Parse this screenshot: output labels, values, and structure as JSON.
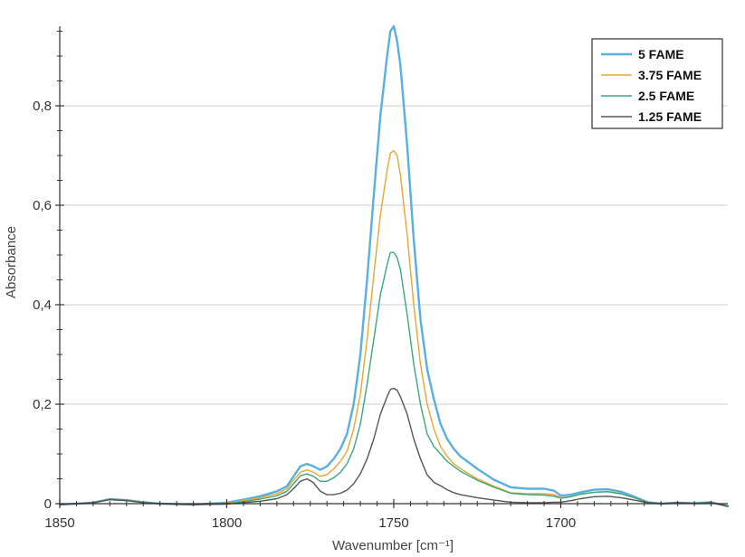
{
  "chart_data": {
    "type": "line",
    "xlabel": "Wavenumber [cm⁻¹]",
    "ylabel": "Absorbance",
    "xlim": [
      1850,
      1650
    ],
    "ylim": [
      0,
      0.96
    ],
    "x_reversed": true,
    "x_ticks": [
      1850,
      1800,
      1750,
      1700
    ],
    "x_tick_labels": [
      "1850",
      "1800",
      "1750",
      "1700"
    ],
    "y_ticks": [
      0,
      0.2,
      0.4,
      0.6,
      0.8
    ],
    "y_tick_labels": [
      "0",
      "0,2",
      "0,4",
      "0,6",
      "0,8"
    ],
    "grid": "horizontal",
    "legend_position": "top-right",
    "series": [
      {
        "name": "5 FAME",
        "color": "#5aafe0",
        "points": [
          [
            1850,
            -0.002
          ],
          [
            1840,
            0.002
          ],
          [
            1835,
            0.009
          ],
          [
            1830,
            0.007
          ],
          [
            1825,
            0.003
          ],
          [
            1820,
            0.0
          ],
          [
            1810,
            -0.002
          ],
          [
            1800,
            0.002
          ],
          [
            1795,
            0.008
          ],
          [
            1790,
            0.015
          ],
          [
            1785,
            0.025
          ],
          [
            1782,
            0.035
          ],
          [
            1780,
            0.055
          ],
          [
            1778,
            0.075
          ],
          [
            1776,
            0.08
          ],
          [
            1774,
            0.075
          ],
          [
            1772,
            0.068
          ],
          [
            1770,
            0.075
          ],
          [
            1768,
            0.09
          ],
          [
            1766,
            0.11
          ],
          [
            1764,
            0.14
          ],
          [
            1762,
            0.2
          ],
          [
            1760,
            0.3
          ],
          [
            1758,
            0.45
          ],
          [
            1756,
            0.62
          ],
          [
            1754,
            0.78
          ],
          [
            1752,
            0.9
          ],
          [
            1751,
            0.95
          ],
          [
            1750,
            0.96
          ],
          [
            1749,
            0.93
          ],
          [
            1748,
            0.88
          ],
          [
            1746,
            0.72
          ],
          [
            1744,
            0.53
          ],
          [
            1742,
            0.37
          ],
          [
            1740,
            0.27
          ],
          [
            1738,
            0.21
          ],
          [
            1736,
            0.16
          ],
          [
            1734,
            0.13
          ],
          [
            1732,
            0.11
          ],
          [
            1730,
            0.095
          ],
          [
            1725,
            0.07
          ],
          [
            1720,
            0.048
          ],
          [
            1715,
            0.033
          ],
          [
            1710,
            0.03
          ],
          [
            1705,
            0.03
          ],
          [
            1702,
            0.026
          ],
          [
            1700,
            0.016
          ],
          [
            1697,
            0.018
          ],
          [
            1694,
            0.023
          ],
          [
            1690,
            0.028
          ],
          [
            1686,
            0.029
          ],
          [
            1682,
            0.024
          ],
          [
            1678,
            0.014
          ],
          [
            1674,
            0.003
          ],
          [
            1670,
            0.0
          ],
          [
            1665,
            0.002
          ],
          [
            1660,
            0.001
          ],
          [
            1655,
            0.003
          ],
          [
            1650,
            -0.005
          ]
        ]
      },
      {
        "name": "3.75 FAME",
        "color": "#e8a632",
        "points": [
          [
            1850,
            -0.002
          ],
          [
            1840,
            0.002
          ],
          [
            1835,
            0.009
          ],
          [
            1830,
            0.007
          ],
          [
            1825,
            0.003
          ],
          [
            1820,
            0.0
          ],
          [
            1810,
            -0.002
          ],
          [
            1800,
            0.001
          ],
          [
            1795,
            0.006
          ],
          [
            1790,
            0.012
          ],
          [
            1785,
            0.02
          ],
          [
            1782,
            0.03
          ],
          [
            1780,
            0.047
          ],
          [
            1778,
            0.063
          ],
          [
            1776,
            0.068
          ],
          [
            1774,
            0.063
          ],
          [
            1772,
            0.055
          ],
          [
            1770,
            0.058
          ],
          [
            1768,
            0.07
          ],
          [
            1766,
            0.085
          ],
          [
            1764,
            0.105
          ],
          [
            1762,
            0.15
          ],
          [
            1760,
            0.22
          ],
          [
            1758,
            0.33
          ],
          [
            1756,
            0.46
          ],
          [
            1754,
            0.58
          ],
          [
            1752,
            0.67
          ],
          [
            1751,
            0.705
          ],
          [
            1750,
            0.71
          ],
          [
            1749,
            0.7
          ],
          [
            1748,
            0.66
          ],
          [
            1746,
            0.54
          ],
          [
            1744,
            0.4
          ],
          [
            1742,
            0.28
          ],
          [
            1740,
            0.2
          ],
          [
            1738,
            0.15
          ],
          [
            1736,
            0.115
          ],
          [
            1734,
            0.095
          ],
          [
            1732,
            0.08
          ],
          [
            1730,
            0.07
          ],
          [
            1725,
            0.05
          ],
          [
            1720,
            0.035
          ],
          [
            1715,
            0.022
          ],
          [
            1710,
            0.02
          ],
          [
            1705,
            0.02
          ],
          [
            1702,
            0.018
          ],
          [
            1700,
            0.012
          ],
          [
            1697,
            0.014
          ],
          [
            1694,
            0.019
          ],
          [
            1690,
            0.023
          ],
          [
            1686,
            0.025
          ],
          [
            1682,
            0.02
          ],
          [
            1678,
            0.012
          ],
          [
            1674,
            0.003
          ],
          [
            1670,
            0.0
          ],
          [
            1665,
            0.002
          ],
          [
            1660,
            0.001
          ],
          [
            1655,
            0.003
          ],
          [
            1650,
            -0.005
          ]
        ]
      },
      {
        "name": "2.5 FAME",
        "color": "#3aa87a",
        "points": [
          [
            1850,
            -0.002
          ],
          [
            1840,
            0.002
          ],
          [
            1835,
            0.009
          ],
          [
            1830,
            0.007
          ],
          [
            1825,
            0.003
          ],
          [
            1820,
            0.0
          ],
          [
            1810,
            -0.002
          ],
          [
            1800,
            0.0
          ],
          [
            1795,
            0.004
          ],
          [
            1790,
            0.009
          ],
          [
            1785,
            0.016
          ],
          [
            1782,
            0.025
          ],
          [
            1780,
            0.04
          ],
          [
            1778,
            0.056
          ],
          [
            1776,
            0.06
          ],
          [
            1774,
            0.055
          ],
          [
            1772,
            0.045
          ],
          [
            1770,
            0.045
          ],
          [
            1768,
            0.052
          ],
          [
            1766,
            0.063
          ],
          [
            1764,
            0.08
          ],
          [
            1762,
            0.11
          ],
          [
            1760,
            0.16
          ],
          [
            1758,
            0.24
          ],
          [
            1756,
            0.33
          ],
          [
            1754,
            0.42
          ],
          [
            1752,
            0.48
          ],
          [
            1751,
            0.505
          ],
          [
            1750,
            0.505
          ],
          [
            1749,
            0.495
          ],
          [
            1748,
            0.47
          ],
          [
            1746,
            0.38
          ],
          [
            1744,
            0.28
          ],
          [
            1742,
            0.2
          ],
          [
            1740,
            0.14
          ],
          [
            1738,
            0.115
          ],
          [
            1736,
            0.1
          ],
          [
            1734,
            0.085
          ],
          [
            1732,
            0.075
          ],
          [
            1730,
            0.065
          ],
          [
            1725,
            0.047
          ],
          [
            1720,
            0.033
          ],
          [
            1715,
            0.021
          ],
          [
            1710,
            0.018
          ],
          [
            1705,
            0.017
          ],
          [
            1702,
            0.015
          ],
          [
            1700,
            0.011
          ],
          [
            1697,
            0.014
          ],
          [
            1694,
            0.019
          ],
          [
            1690,
            0.023
          ],
          [
            1686,
            0.024
          ],
          [
            1682,
            0.02
          ],
          [
            1678,
            0.012
          ],
          [
            1674,
            0.003
          ],
          [
            1670,
            0.0
          ],
          [
            1665,
            0.002
          ],
          [
            1660,
            0.001
          ],
          [
            1655,
            0.003
          ],
          [
            1650,
            -0.005
          ]
        ]
      },
      {
        "name": "1.25 FAME",
        "color": "#555555",
        "points": [
          [
            1850,
            -0.002
          ],
          [
            1840,
            0.002
          ],
          [
            1835,
            0.008
          ],
          [
            1830,
            0.006
          ],
          [
            1825,
            0.002
          ],
          [
            1820,
            0.0
          ],
          [
            1810,
            -0.002
          ],
          [
            1800,
            -0.001
          ],
          [
            1795,
            0.002
          ],
          [
            1790,
            0.005
          ],
          [
            1785,
            0.01
          ],
          [
            1782,
            0.018
          ],
          [
            1780,
            0.03
          ],
          [
            1778,
            0.045
          ],
          [
            1776,
            0.05
          ],
          [
            1774,
            0.042
          ],
          [
            1772,
            0.025
          ],
          [
            1770,
            0.018
          ],
          [
            1768,
            0.018
          ],
          [
            1766,
            0.021
          ],
          [
            1764,
            0.027
          ],
          [
            1762,
            0.04
          ],
          [
            1760,
            0.06
          ],
          [
            1758,
            0.09
          ],
          [
            1756,
            0.13
          ],
          [
            1754,
            0.18
          ],
          [
            1752,
            0.215
          ],
          [
            1751,
            0.23
          ],
          [
            1750,
            0.232
          ],
          [
            1749,
            0.228
          ],
          [
            1748,
            0.215
          ],
          [
            1746,
            0.18
          ],
          [
            1744,
            0.13
          ],
          [
            1742,
            0.09
          ],
          [
            1740,
            0.058
          ],
          [
            1738,
            0.043
          ],
          [
            1736,
            0.036
          ],
          [
            1734,
            0.028
          ],
          [
            1732,
            0.022
          ],
          [
            1730,
            0.018
          ],
          [
            1725,
            0.012
          ],
          [
            1720,
            0.007
          ],
          [
            1715,
            0.003
          ],
          [
            1710,
            0.002
          ],
          [
            1705,
            0.002
          ],
          [
            1702,
            0.003
          ],
          [
            1700,
            0.003
          ],
          [
            1697,
            0.006
          ],
          [
            1694,
            0.01
          ],
          [
            1690,
            0.014
          ],
          [
            1686,
            0.015
          ],
          [
            1682,
            0.012
          ],
          [
            1678,
            0.007
          ],
          [
            1674,
            0.002
          ],
          [
            1670,
            0.0
          ],
          [
            1665,
            0.002
          ],
          [
            1660,
            0.0
          ],
          [
            1655,
            0.002
          ],
          [
            1650,
            -0.005
          ]
        ]
      }
    ]
  }
}
